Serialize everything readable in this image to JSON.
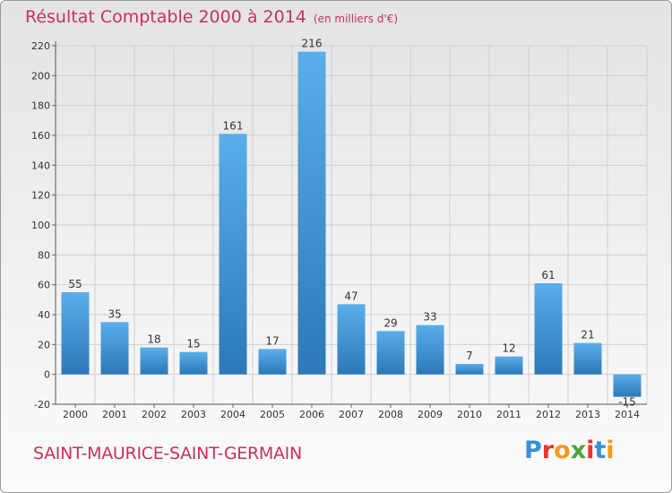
{
  "title": "Résultat Comptable 2000 à 2014",
  "unit_label": "(en milliers d'€)",
  "commune": "SAINT-MAURICE-SAINT-GERMAIN",
  "brand": {
    "text": "Proxiti",
    "letter_colors": [
      "#3a8ed8",
      "#e8342c",
      "#f39a1c",
      "#4aa83a",
      "#e8342c",
      "#3a8ed8",
      "#f39a1c"
    ]
  },
  "colors": {
    "title": "#c8325a",
    "bar_top": "#5aaeea",
    "bar_bottom": "#2c78b8",
    "grid": "#cfcfcf",
    "axis_text": "#333333"
  },
  "chart_data": {
    "type": "bar",
    "title": "Résultat Comptable 2000 à 2014",
    "subtitle": "(en milliers d'€)",
    "xlabel": "",
    "ylabel": "",
    "categories": [
      "2000",
      "2001",
      "2002",
      "2003",
      "2004",
      "2005",
      "2006",
      "2007",
      "2008",
      "2009",
      "2010",
      "2011",
      "2012",
      "2013",
      "2014"
    ],
    "values": [
      55,
      35,
      18,
      15,
      161,
      17,
      216,
      47,
      29,
      33,
      7,
      12,
      61,
      21,
      -15
    ],
    "data_labels": [
      "55",
      "35",
      "18",
      "15",
      "161",
      "17",
      "216",
      "47",
      "29",
      "33",
      "7",
      "12",
      "61",
      "21",
      "-15"
    ],
    "ylim": [
      -20,
      220
    ],
    "yticks": [
      -20,
      0,
      20,
      40,
      60,
      80,
      100,
      120,
      140,
      160,
      180,
      200,
      220
    ],
    "grid": true,
    "legend": "none"
  }
}
